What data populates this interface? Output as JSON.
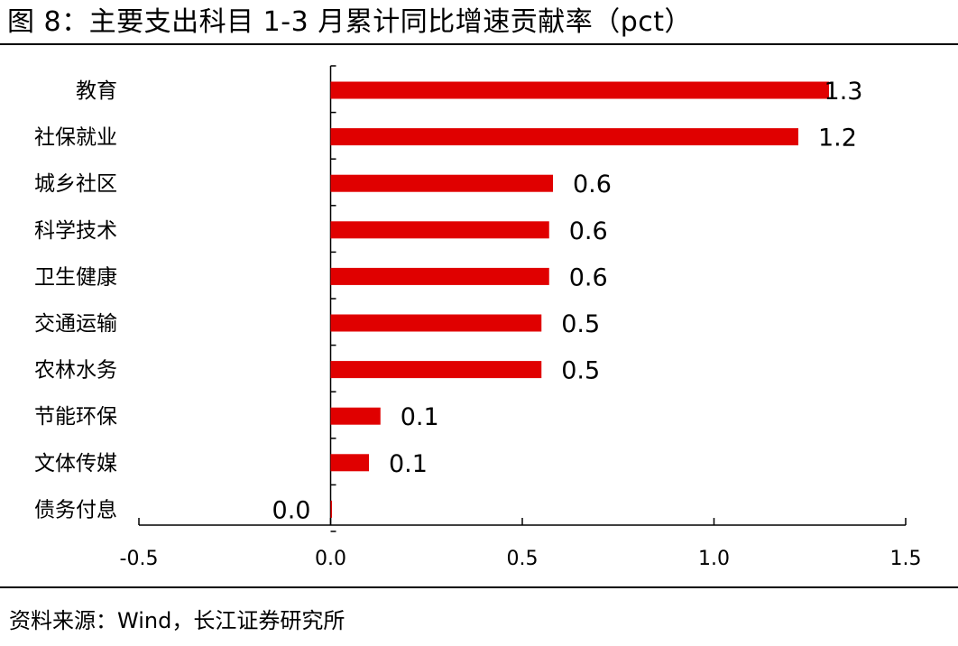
{
  "figure_title": "图 8：主要支出科目 1-3 月累计同比增速贡献率（pct）",
  "source_note": "资料来源：Wind，长江证券研究所",
  "colors": {
    "bar": "#e00000",
    "axis": "#000000"
  },
  "chart_data": {
    "type": "bar",
    "orientation": "horizontal",
    "categories": [
      "教育",
      "社保就业",
      "城乡社区",
      "科学技术",
      "卫生健康",
      "交通运输",
      "农林水务",
      "节能环保",
      "文体传媒",
      "债务付息"
    ],
    "values": [
      1.3,
      1.2,
      0.6,
      0.6,
      0.6,
      0.5,
      0.5,
      0.1,
      0.1,
      0.0
    ],
    "bar_values": [
      1.3,
      1.22,
      0.58,
      0.57,
      0.57,
      0.55,
      0.55,
      0.13,
      0.1,
      0.0
    ],
    "data_labels": [
      "1.3",
      "1.2",
      "0.6",
      "0.6",
      "0.6",
      "0.5",
      "0.5",
      "0.1",
      "0.1",
      "0.0"
    ],
    "x_ticks": [
      "-0.5",
      "0.0",
      "0.5",
      "1.0",
      "1.5"
    ],
    "xlim": [
      -0.5,
      1.5
    ],
    "xlabel": "",
    "ylabel": "",
    "grid": false,
    "legend": "none"
  }
}
